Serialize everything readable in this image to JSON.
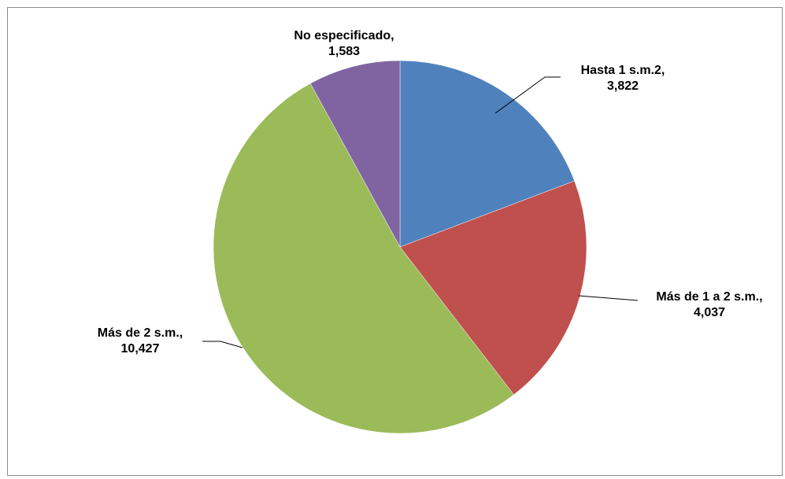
{
  "chart_data": {
    "type": "pie",
    "title": "",
    "start_angle_deg": 0,
    "direction": "clockwise",
    "slices": [
      {
        "label": "Hasta 1 s.m.2",
        "value": 3822,
        "value_text": "3,822",
        "color": "#4F81BD"
      },
      {
        "label": "Más de 1 a 2 s.m.",
        "value": 4037,
        "value_text": "4,037",
        "color": "#C0504D"
      },
      {
        "label": "Más de 2 s.m.",
        "value": 10427,
        "value_text": "10,427",
        "color": "#9BBB59"
      },
      {
        "label": "No especificado",
        "value": 1583,
        "value_text": "1,583",
        "color": "#8064A2"
      }
    ],
    "data_labels": [
      {
        "name": "Hasta 1 s.m.2,",
        "value": "3,822"
      },
      {
        "name": "Más de 1 a 2 s.m.,",
        "value": "4,037"
      },
      {
        "name": "Más de 2 s.m.,",
        "value": "10,427"
      },
      {
        "name": "No especificado,",
        "value": "1,583"
      }
    ]
  }
}
